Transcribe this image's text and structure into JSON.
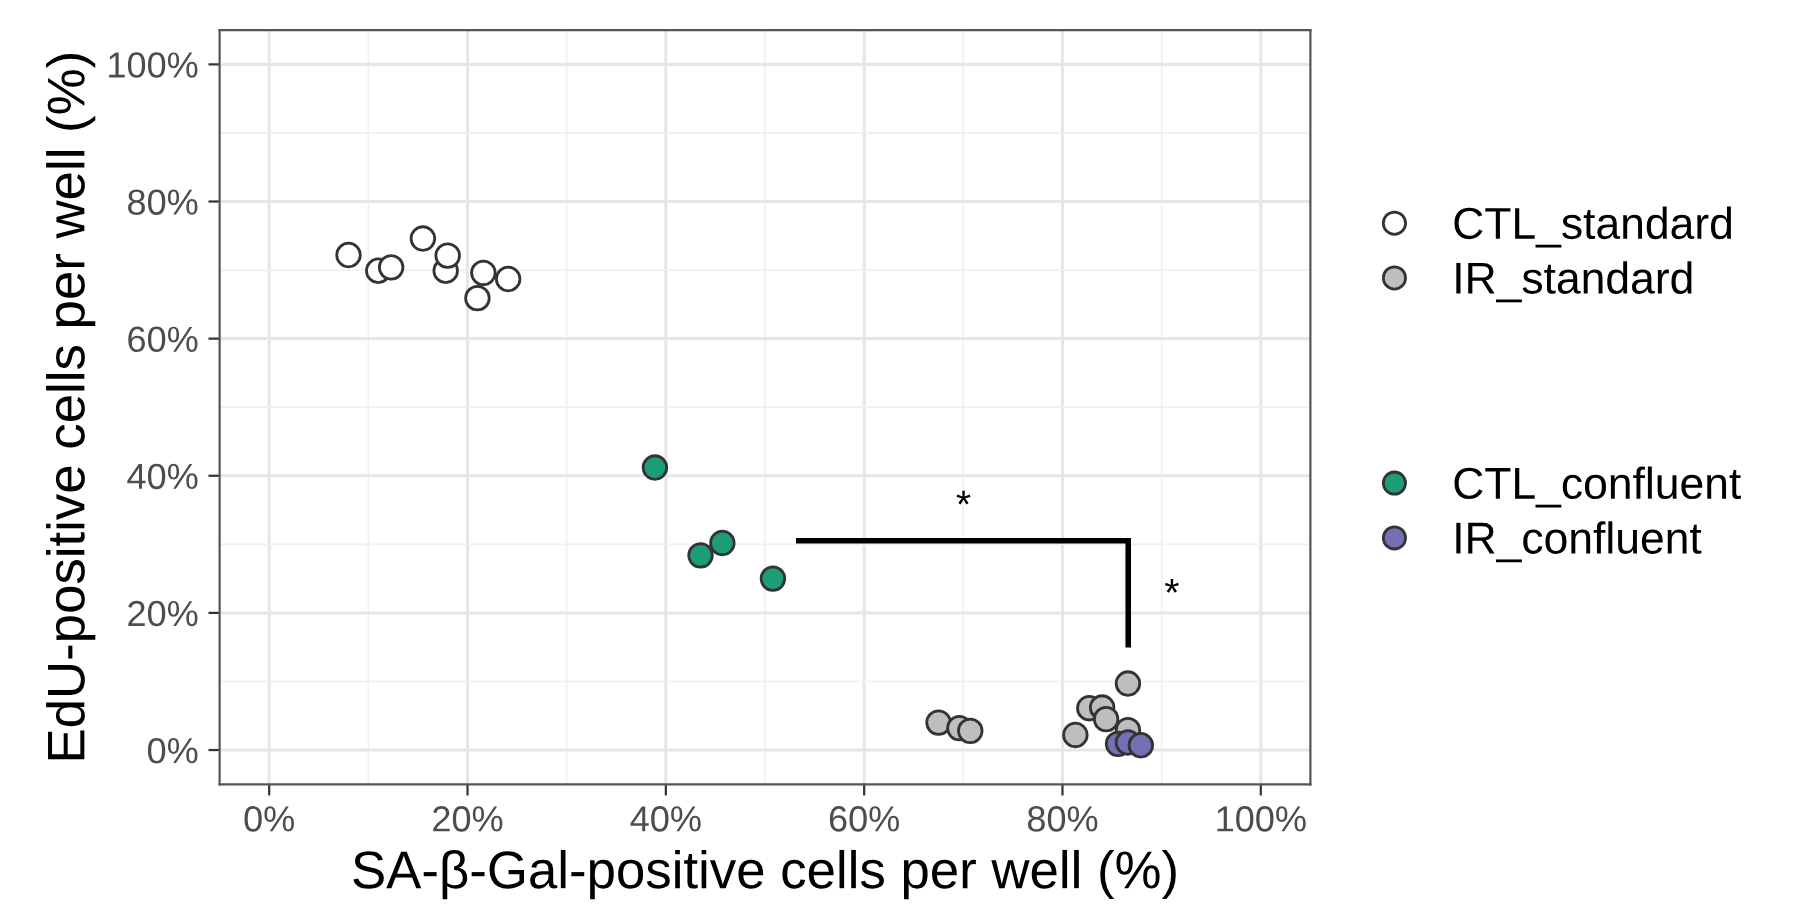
{
  "chart_data": {
    "type": "scatter",
    "xlabel": "SA-β-Gal-positive cells per well (%)",
    "ylabel": "EdU-positive cells per well (%)",
    "series": [
      {
        "name": "CTL_standard",
        "color": "#ffffff",
        "x": [
          8.0,
          11.0,
          12.3,
          15.5,
          17.8,
          18.0,
          21.0,
          21.6,
          24.1
        ],
        "values": [
          72.2,
          69.9,
          70.4,
          74.6,
          69.9,
          72.1,
          65.9,
          69.6,
          68.7
        ]
      },
      {
        "name": "IR_standard",
        "color": "#bebebe",
        "x": [
          67.5,
          69.6,
          70.7,
          81.3,
          82.7,
          84.0,
          84.4,
          86.6,
          86.6
        ],
        "values": [
          4.0,
          3.2,
          2.8,
          2.2,
          6.1,
          6.2,
          4.5,
          9.7,
          2.9
        ]
      },
      {
        "name": "CTL_confluent",
        "color": "#1b9e77",
        "x": [
          38.9,
          43.5,
          45.7,
          50.8
        ],
        "values": [
          41.2,
          28.4,
          30.2,
          25.0
        ]
      },
      {
        "name": "IR_confluent",
        "color": "#7570b3",
        "x": [
          85.6,
          86.6,
          87.9
        ],
        "values": [
          0.9,
          1.1,
          0.7
        ]
      }
    ],
    "annotations": [
      "*",
      "*"
    ],
    "xlim": [
      -5,
      105
    ],
    "ylim": [
      -5,
      105
    ],
    "xticks": [
      {
        "value": 0,
        "label": "0%"
      },
      {
        "value": 20,
        "label": "20%"
      },
      {
        "value": 40,
        "label": "40%"
      },
      {
        "value": 60,
        "label": "60%"
      },
      {
        "value": 80,
        "label": "80%"
      },
      {
        "value": 100,
        "label": "100%"
      }
    ],
    "yticks": [
      {
        "value": 0,
        "label": "0%"
      },
      {
        "value": 20,
        "label": "20%"
      },
      {
        "value": 40,
        "label": "40%"
      },
      {
        "value": 60,
        "label": "60%"
      },
      {
        "value": 80,
        "label": "80%"
      },
      {
        "value": 100,
        "label": "100%"
      }
    ],
    "grid": true,
    "legend": "right",
    "marker": "circle"
  }
}
